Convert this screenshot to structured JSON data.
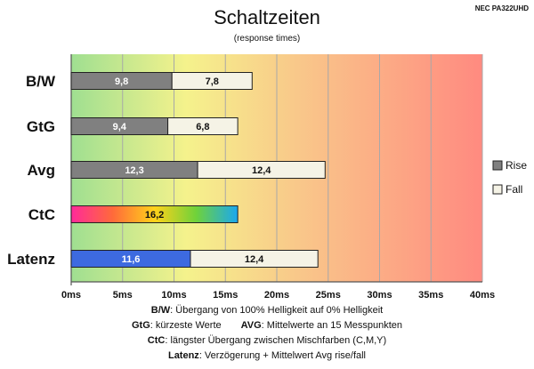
{
  "header": {
    "title": "Schaltzeiten",
    "subtitle": "(response times)",
    "model": "NEC PA322UHD"
  },
  "chart_data": {
    "type": "bar",
    "orientation": "horizontal",
    "stacked": true,
    "title": "Schaltzeiten",
    "subtitle": "(response times)",
    "categories": [
      "B/W",
      "GtG",
      "Avg",
      "CtC",
      "Latenz"
    ],
    "series": [
      {
        "name": "Rise",
        "values": [
          9.8,
          9.4,
          12.3,
          16.2,
          11.6
        ],
        "labels": [
          "9,8",
          "9,4",
          "12,3",
          "16,2",
          "11,6"
        ],
        "color": "#808080"
      },
      {
        "name": "Fall",
        "values": [
          7.8,
          6.8,
          12.4,
          null,
          12.4
        ],
        "labels": [
          "7,8",
          "6,8",
          "12,4",
          "",
          "12,4"
        ],
        "color": "#f5f3e6"
      }
    ],
    "special_fills": {
      "CtC": "rainbow-gradient",
      "Latenz": "#3d6ae0"
    },
    "xlim": [
      0,
      40
    ],
    "x_ticks": [
      "0ms",
      "5ms",
      "10ms",
      "15ms",
      "20ms",
      "25ms",
      "30ms",
      "35ms",
      "40ms"
    ],
    "background": "green-yellow-red gradient",
    "grid": true,
    "legend": {
      "position": "right",
      "entries": [
        "Rise",
        "Fall"
      ]
    }
  },
  "notes": [
    {
      "key": "B/W",
      "text": ":  Übergang von 100% Helligkeit auf 0% Helligkeit"
    },
    {
      "key": "GtG",
      "text": ": kürzeste  Werte",
      "key2": "AVG",
      "text2": ": Mittelwerte  an 15 Messpunkten"
    },
    {
      "key": "CtC",
      "text": ": längster Übergang  zwischen Mischfarben (C,M,Y)"
    },
    {
      "key": "Latenz",
      "text": ": Verzögerung  + Mittelwert  Avg rise/fall"
    }
  ]
}
